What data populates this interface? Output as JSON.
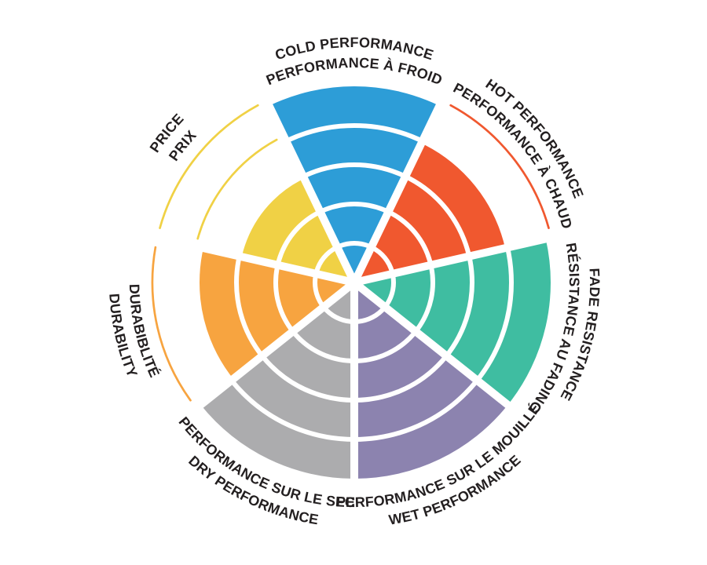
{
  "page": {
    "background": "#FFFFFF"
  },
  "chart_data": {
    "type": "polar-rating-wheel",
    "title": "",
    "max_rating": 5,
    "ring_count": 5,
    "grid": "concentric-rings-with-radial-gaps",
    "legend_position": "curved-labels-around-wheel",
    "label_color": "#231F20",
    "divider_color": "#FFFFFF",
    "categories": [
      {
        "id": "cold-performance",
        "label_en": "COLD PERFORMANCE",
        "label_fr": "PERFORMANCE À FROID",
        "value": 5,
        "color": "#2D9DD7"
      },
      {
        "id": "hot-performance",
        "label_en": "HOT PERFORMANCE",
        "label_fr": "PERFORMANCE À CHAUD",
        "value": 4,
        "color": "#F0582F"
      },
      {
        "id": "fade-resistance",
        "label_en": "FADE RESISTANCE",
        "label_fr": "RÉSISTANCE AU FADING",
        "value": 5,
        "color": "#3FBDA1"
      },
      {
        "id": "wet-performance",
        "label_en": "WET PERFORMANCE",
        "label_fr": "PERFORMANCE SUR LE MOUILLÉ",
        "value": 5,
        "color": "#8C83AF"
      },
      {
        "id": "dry-performance",
        "label_en": "DRY PERFORMANCE",
        "label_fr": "PERFORMANCE SUR LE SEC",
        "value": 5,
        "color": "#ACACAE"
      },
      {
        "id": "durability",
        "label_en": "DURABILITY",
        "label_fr": "DURABIBLITÉ",
        "value": 4,
        "color": "#F7A440"
      },
      {
        "id": "price",
        "label_en": "PRICE",
        "label_fr": "PRIX",
        "value": 3,
        "color": "#F0D145"
      }
    ]
  }
}
